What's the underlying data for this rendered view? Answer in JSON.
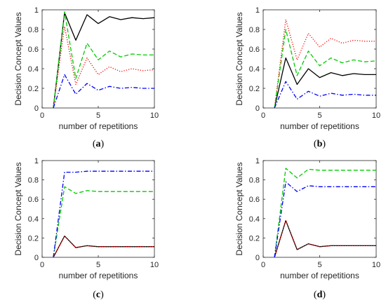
{
  "figure_title": "",
  "chart_data": [
    {
      "type": "line",
      "panel_label": "(a)",
      "xlabel": "number of repetitions",
      "ylabel": "Decision Concept Values",
      "xlim": [
        0,
        10
      ],
      "ylim": [
        0,
        1
      ],
      "xticks": [
        "0",
        "5",
        "10"
      ],
      "yticks": [
        "0",
        "0.2",
        "0.4",
        "0.6",
        "0.8",
        "1"
      ],
      "grid": false,
      "x": [
        1,
        2,
        3,
        4,
        5,
        6,
        7,
        8,
        9,
        10
      ],
      "series": [
        {
          "color": "#000000",
          "dash": "solid",
          "values": [
            0,
            0.97,
            0.69,
            0.95,
            0.86,
            0.93,
            0.9,
            0.92,
            0.91,
            0.92
          ]
        },
        {
          "color": "#ff0000",
          "dash": "dotted",
          "values": [
            0,
            0.83,
            0.24,
            0.51,
            0.34,
            0.42,
            0.37,
            0.4,
            0.38,
            0.39
          ]
        },
        {
          "color": "#00cc00",
          "dash": "dashed",
          "values": [
            0,
            0.98,
            0.3,
            0.66,
            0.49,
            0.58,
            0.52,
            0.55,
            0.54,
            0.54
          ]
        },
        {
          "color": "#0000ff",
          "dash": "dashdot",
          "values": [
            0,
            0.34,
            0.14,
            0.25,
            0.18,
            0.22,
            0.2,
            0.21,
            0.2,
            0.2
          ]
        }
      ]
    },
    {
      "type": "line",
      "panel_label": "(b)",
      "xlabel": "number of repetitions",
      "ylabel": "Decision Concept Values",
      "xlim": [
        0,
        10
      ],
      "ylim": [
        0,
        1
      ],
      "xticks": [
        "0",
        "5",
        "10"
      ],
      "yticks": [
        "0",
        "0.2",
        "0.4",
        "0.6",
        "0.8",
        "1"
      ],
      "grid": false,
      "x": [
        1,
        2,
        3,
        4,
        5,
        6,
        7,
        8,
        9,
        10
      ],
      "series": [
        {
          "color": "#000000",
          "dash": "solid",
          "values": [
            0,
            0.51,
            0.24,
            0.4,
            0.31,
            0.36,
            0.33,
            0.35,
            0.34,
            0.34
          ]
        },
        {
          "color": "#ff0000",
          "dash": "dotted",
          "values": [
            0,
            0.9,
            0.49,
            0.76,
            0.62,
            0.71,
            0.66,
            0.69,
            0.68,
            0.68
          ]
        },
        {
          "color": "#00cc00",
          "dash": "dashed",
          "values": [
            0,
            0.8,
            0.33,
            0.58,
            0.43,
            0.51,
            0.46,
            0.49,
            0.47,
            0.48
          ]
        },
        {
          "color": "#0000ff",
          "dash": "dashdot",
          "values": [
            0,
            0.27,
            0.09,
            0.17,
            0.12,
            0.15,
            0.13,
            0.14,
            0.13,
            0.13
          ]
        }
      ]
    },
    {
      "type": "line",
      "panel_label": "(c)",
      "xlabel": "number of repetitions",
      "ylabel": "Decision Concept Values",
      "xlim": [
        0,
        10
      ],
      "ylim": [
        0,
        1
      ],
      "xticks": [
        "0",
        "5",
        "10"
      ],
      "yticks": [
        "0",
        "0.2",
        "0.4",
        "0.6",
        "0.8",
        "1"
      ],
      "grid": false,
      "x": [
        1,
        2,
        3,
        4,
        5,
        6,
        7,
        8,
        9,
        10
      ],
      "series": [
        {
          "color": "#000000",
          "dash": "solid",
          "values": [
            0,
            0.22,
            0.1,
            0.12,
            0.11,
            0.11,
            0.11,
            0.11,
            0.11,
            0.11
          ]
        },
        {
          "color": "#ff0000",
          "dash": "dotted",
          "values": [
            0,
            0.22,
            0.1,
            0.12,
            0.11,
            0.11,
            0.11,
            0.11,
            0.11,
            0.11
          ]
        },
        {
          "color": "#00cc00",
          "dash": "dashed",
          "values": [
            0,
            0.73,
            0.66,
            0.69,
            0.68,
            0.68,
            0.68,
            0.68,
            0.68,
            0.68
          ]
        },
        {
          "color": "#0000ff",
          "dash": "dashdot",
          "values": [
            0,
            0.88,
            0.88,
            0.89,
            0.89,
            0.89,
            0.89,
            0.89,
            0.89,
            0.89
          ]
        }
      ]
    },
    {
      "type": "line",
      "panel_label": "(d)",
      "xlabel": "number of repetitions",
      "ylabel": "Decision Concept Values",
      "xlim": [
        0,
        10
      ],
      "ylim": [
        0,
        1
      ],
      "xticks": [
        "0",
        "5",
        "10"
      ],
      "yticks": [
        "0",
        "0.2",
        "0.4",
        "0.6",
        "0.8",
        "1"
      ],
      "grid": false,
      "x": [
        1,
        2,
        3,
        4,
        5,
        6,
        7,
        8,
        9,
        10
      ],
      "series": [
        {
          "color": "#000000",
          "dash": "solid",
          "values": [
            0,
            0.38,
            0.08,
            0.14,
            0.11,
            0.12,
            0.12,
            0.12,
            0.12,
            0.12
          ]
        },
        {
          "color": "#ff0000",
          "dash": "dotted",
          "values": [
            0,
            0.38,
            0.08,
            0.14,
            0.11,
            0.12,
            0.12,
            0.12,
            0.12,
            0.12
          ]
        },
        {
          "color": "#00cc00",
          "dash": "dashed",
          "values": [
            0,
            0.92,
            0.82,
            0.91,
            0.9,
            0.9,
            0.9,
            0.9,
            0.9,
            0.9
          ]
        },
        {
          "color": "#0000ff",
          "dash": "dashdot",
          "values": [
            0,
            0.78,
            0.68,
            0.74,
            0.73,
            0.73,
            0.73,
            0.73,
            0.73,
            0.73
          ]
        }
      ]
    }
  ]
}
